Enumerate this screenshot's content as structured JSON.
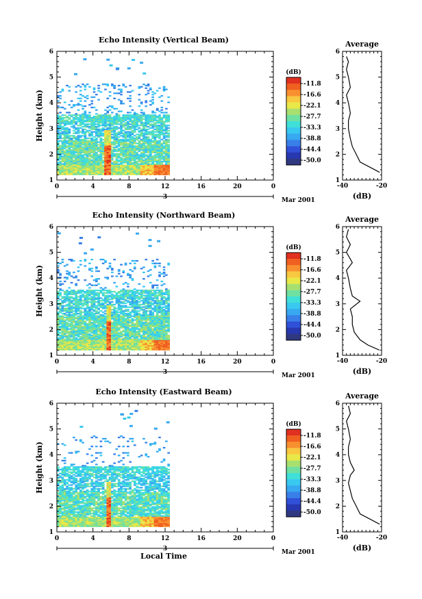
{
  "figure": {
    "date_label": "Mar 2001",
    "xlabel_bottom": "Local Time"
  },
  "colorbar": {
    "unit": "(dB)",
    "ticks": [
      "-11.8",
      "-16.6",
      "-22.1",
      "-27.7",
      "-33.3",
      "-38.8",
      "-44.4",
      "-50.0"
    ],
    "colors": [
      "#e03020",
      "#f06020",
      "#f89030",
      "#f8c840",
      "#e8e848",
      "#a8e070",
      "#70e0a0",
      "#40e0d8",
      "#38c8f0",
      "#38a8f0",
      "#3880e8",
      "#3050d8",
      "#2838b0",
      "#303880"
    ]
  },
  "chart_data": [
    {
      "type": "heatmap",
      "title": "Echo Intensity (Vertical Beam)",
      "ylabel": "Height (km)",
      "xlabel": "",
      "x_ticks": [
        "0",
        "4",
        "8",
        "12",
        "16",
        "20",
        "0"
      ],
      "y_ticks": [
        "1",
        "2",
        "3",
        "4",
        "5",
        "6"
      ],
      "xlim": [
        0,
        24
      ],
      "ylim": [
        1,
        6
      ],
      "day_marker": "3",
      "data_extent_hours": [
        0,
        12.5
      ],
      "features": [
        {
          "desc": "continuous echo layer",
          "height_km": [
            1.3,
            3.4
          ],
          "intensity_db": [
            -38,
            -27
          ]
        },
        {
          "desc": "sparse echoes",
          "height_km": [
            3.4,
            4.7
          ],
          "intensity_db": [
            -38,
            -33
          ]
        },
        {
          "desc": "strong precipitation column near 05 LT",
          "time_h": [
            5.2,
            5.8
          ],
          "intensity_db": [
            -16,
            -11.8
          ]
        }
      ],
      "profile": {
        "title": "Average",
        "xlabel": "(dB)",
        "xlim": [
          -40,
          -20
        ],
        "x_ticks": [
          "-40",
          "-20"
        ],
        "y_ticks": [
          "1",
          "2",
          "3",
          "4",
          "5",
          "6"
        ],
        "height": [
          1.3,
          1.5,
          1.7,
          2.0,
          2.3,
          2.6,
          3.0,
          3.3,
          3.6,
          4.0,
          4.3,
          4.6,
          5.0,
          5.3,
          5.6,
          5.8
        ],
        "value": [
          -21,
          -26,
          -31,
          -33,
          -35,
          -36,
          -37,
          -37,
          -36,
          -37,
          -38,
          -36,
          -37,
          -38,
          -37,
          -38
        ]
      }
    },
    {
      "type": "heatmap",
      "title": "Echo Intensity (Northward Beam)",
      "ylabel": "Height (km)",
      "xlabel": "",
      "x_ticks": [
        "0",
        "4",
        "8",
        "12",
        "16",
        "20",
        "0"
      ],
      "y_ticks": [
        "1",
        "2",
        "3",
        "4",
        "5",
        "6"
      ],
      "xlim": [
        0,
        24
      ],
      "ylim": [
        1,
        6
      ],
      "day_marker": "3",
      "data_extent_hours": [
        0,
        12.5
      ],
      "features": [
        {
          "desc": "continuous echo layer",
          "height_km": [
            1.2,
            3.5
          ],
          "intensity_db": [
            -38,
            -27
          ]
        },
        {
          "desc": "sparse echoes",
          "height_km": [
            3.5,
            4.6
          ],
          "intensity_db": [
            -38,
            -33
          ]
        },
        {
          "desc": "strong precipitation column near 05 LT",
          "time_h": [
            5.3,
            5.8
          ],
          "intensity_db": [
            -16,
            -11.8
          ]
        }
      ],
      "profile": {
        "title": "Average",
        "xlabel": "(dB)",
        "xlim": [
          -40,
          -20
        ],
        "x_ticks": [
          "-40",
          "-20"
        ],
        "y_ticks": [
          "1",
          "2",
          "3",
          "4",
          "5",
          "6"
        ],
        "height": [
          1.2,
          1.4,
          1.6,
          1.9,
          2.2,
          2.5,
          2.8,
          3.1,
          3.3,
          3.6,
          4.0,
          4.3,
          4.6,
          5.0,
          5.3,
          5.6,
          5.9
        ],
        "value": [
          -21,
          -27,
          -31,
          -34,
          -35,
          -35,
          -36,
          -31,
          -35,
          -36,
          -37,
          -38,
          -35,
          -38,
          -36,
          -38,
          -37
        ]
      }
    },
    {
      "type": "heatmap",
      "title": "Echo Intensity (Eastward Beam)",
      "ylabel": "Height (km)",
      "xlabel": "Local Time",
      "x_ticks": [
        "0",
        "4",
        "8",
        "12",
        "16",
        "20",
        "0"
      ],
      "y_ticks": [
        "1",
        "2",
        "3",
        "4",
        "5",
        "6"
      ],
      "xlim": [
        0,
        24
      ],
      "ylim": [
        1,
        6
      ],
      "day_marker": "3",
      "data_extent_hours": [
        0,
        12.5
      ],
      "features": [
        {
          "desc": "continuous echo layer",
          "height_km": [
            1.3,
            3.5
          ],
          "intensity_db": [
            -38,
            -27
          ]
        },
        {
          "desc": "sparse echoes",
          "height_km": [
            3.5,
            4.7
          ],
          "intensity_db": [
            -38,
            -33
          ]
        },
        {
          "desc": "strong precipitation column near 05 LT",
          "time_h": [
            5.3,
            5.8
          ],
          "intensity_db": [
            -16,
            -11.8
          ]
        }
      ],
      "profile": {
        "title": "Average",
        "xlabel": "(dB)",
        "xlim": [
          -40,
          -20
        ],
        "x_ticks": [
          "-40",
          "-20"
        ],
        "y_ticks": [
          "1",
          "2",
          "3",
          "4",
          "5",
          "6"
        ],
        "height": [
          1.3,
          1.5,
          1.7,
          2.0,
          2.3,
          2.6,
          2.9,
          3.2,
          3.4,
          3.7,
          4.0,
          4.3,
          4.6,
          5.0,
          5.3,
          5.6,
          5.9
        ],
        "value": [
          -21,
          -26,
          -31,
          -33,
          -35,
          -36,
          -37,
          -36,
          -34,
          -36,
          -37,
          -37,
          -36,
          -37,
          -38,
          -36,
          -37
        ]
      }
    }
  ]
}
